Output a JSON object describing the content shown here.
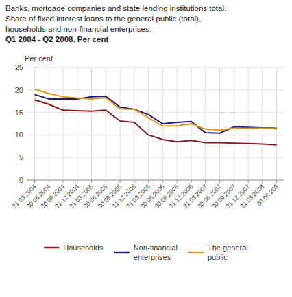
{
  "chart_data": {
    "type": "line",
    "title": "Banks, mortgage companies and state lending institutions total.\nShare of fixed interest loans to the general public (total),\nhouseholds and non-financial enterprises.",
    "subtitle": "Q1 2004 - Q2 2008. Per cent",
    "y_label": "Per cent",
    "categories": [
      "31.03.2004",
      "30.06.2004",
      "30.09.2004",
      "31.12.2004",
      "31.03.2005",
      "30.06.2005",
      "30.09.2005",
      "31.12.2005",
      "31.03.2006",
      "30.06.2006",
      "30.09.2006",
      "31.12.2006",
      "31.03.2007",
      "30.06.2007",
      "30.09.2007",
      "31.12.2007",
      "31.03.2008",
      "30.06.208"
    ],
    "series": [
      {
        "name": "Households",
        "color": "#8B1A1A",
        "values": [
          17.8,
          16.8,
          15.5,
          15.4,
          15.3,
          15.5,
          13.1,
          12.8,
          10.0,
          9.0,
          8.5,
          8.8,
          8.3,
          8.3,
          8.2,
          8.1,
          8.0,
          7.8
        ]
      },
      {
        "name": "Non-financial\nenterprises",
        "color": "#1B1B8B",
        "values": [
          19.0,
          18.0,
          18.0,
          18.0,
          18.5,
          18.6,
          16.2,
          15.7,
          14.5,
          12.5,
          12.8,
          13.0,
          10.5,
          10.4,
          11.8,
          11.7,
          11.6,
          11.5
        ]
      },
      {
        "name": "The general\npublic",
        "color": "#E8960A",
        "values": [
          20.2,
          19.2,
          18.5,
          18.2,
          18.0,
          18.3,
          15.8,
          15.7,
          13.8,
          12.0,
          12.0,
          12.5,
          11.3,
          11.1,
          11.5,
          11.5,
          11.5,
          11.4
        ]
      }
    ],
    "ylim": [
      0,
      25
    ],
    "yticks": [
      0,
      5,
      10,
      15,
      20,
      25
    ],
    "grid": true,
    "legend": "bottom"
  }
}
